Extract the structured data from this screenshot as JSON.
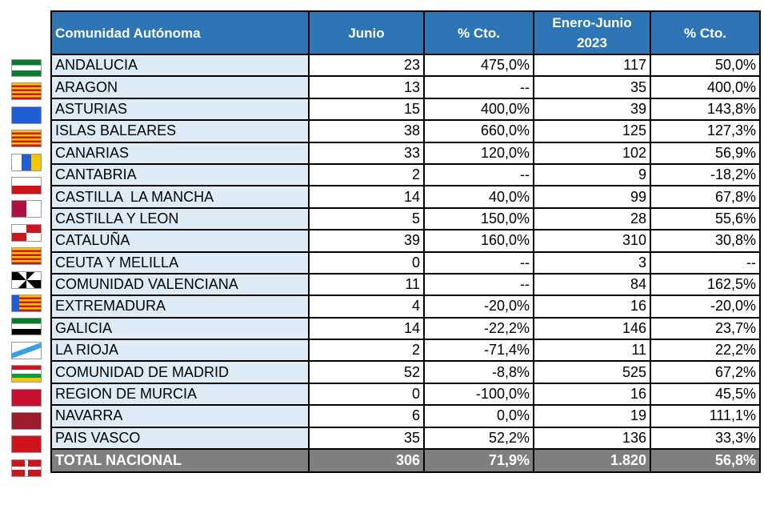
{
  "table": {
    "header": [
      "Comunidad Autónoma",
      "Junio",
      "% Cto.",
      "Enero-Junio 2023",
      "% Cto."
    ],
    "rows": [
      [
        "ANDALUCIA",
        "23",
        "475,0%",
        "117",
        "50,0%"
      ],
      [
        "ARAGON",
        "13",
        "--",
        "35",
        "400,0%"
      ],
      [
        "ASTURIAS",
        "15",
        "400,0%",
        "39",
        "143,8%"
      ],
      [
        "ISLAS BALEARES",
        "38",
        "660,0%",
        "125",
        "127,3%"
      ],
      [
        "CANARIAS",
        "33",
        "120,0%",
        "102",
        "56,9%"
      ],
      [
        "CANTABRIA",
        "2",
        "--",
        "9",
        "-18,2%"
      ],
      [
        "CASTILLA  LA MANCHA",
        "14",
        "40,0%",
        "99",
        "67,8%"
      ],
      [
        "CASTILLA Y LEON",
        "5",
        "150,0%",
        "28",
        "55,6%"
      ],
      [
        "CATALUÑA",
        "39",
        "160,0%",
        "310",
        "30,8%"
      ],
      [
        "CEUTA Y MELILLA",
        "0",
        "--",
        "3",
        "--"
      ],
      [
        "COMUNIDAD VALENCIANA",
        "11",
        "--",
        "84",
        "162,5%"
      ],
      [
        "EXTREMADURA",
        "4",
        "-20,0%",
        "16",
        "-20,0%"
      ],
      [
        "GALICIA",
        "14",
        "-22,2%",
        "146",
        "23,7%"
      ],
      [
        "LA RIOJA",
        "2",
        "-71,4%",
        "11",
        "22,2%"
      ],
      [
        "COMUNIDAD DE MADRID",
        "52",
        "-8,8%",
        "525",
        "67,2%"
      ],
      [
        "REGION DE MURCIA",
        "0",
        "-100,0%",
        "16",
        "45,5%"
      ],
      [
        "NAVARRA",
        "6",
        "0,0%",
        "19",
        "111,1%"
      ],
      [
        "PAIS VASCO",
        "35",
        "52,2%",
        "136",
        "33,3%"
      ]
    ],
    "total": [
      "TOTAL NACIONAL",
      "306",
      "71,9%",
      "1.820",
      "56,8%"
    ]
  }
}
